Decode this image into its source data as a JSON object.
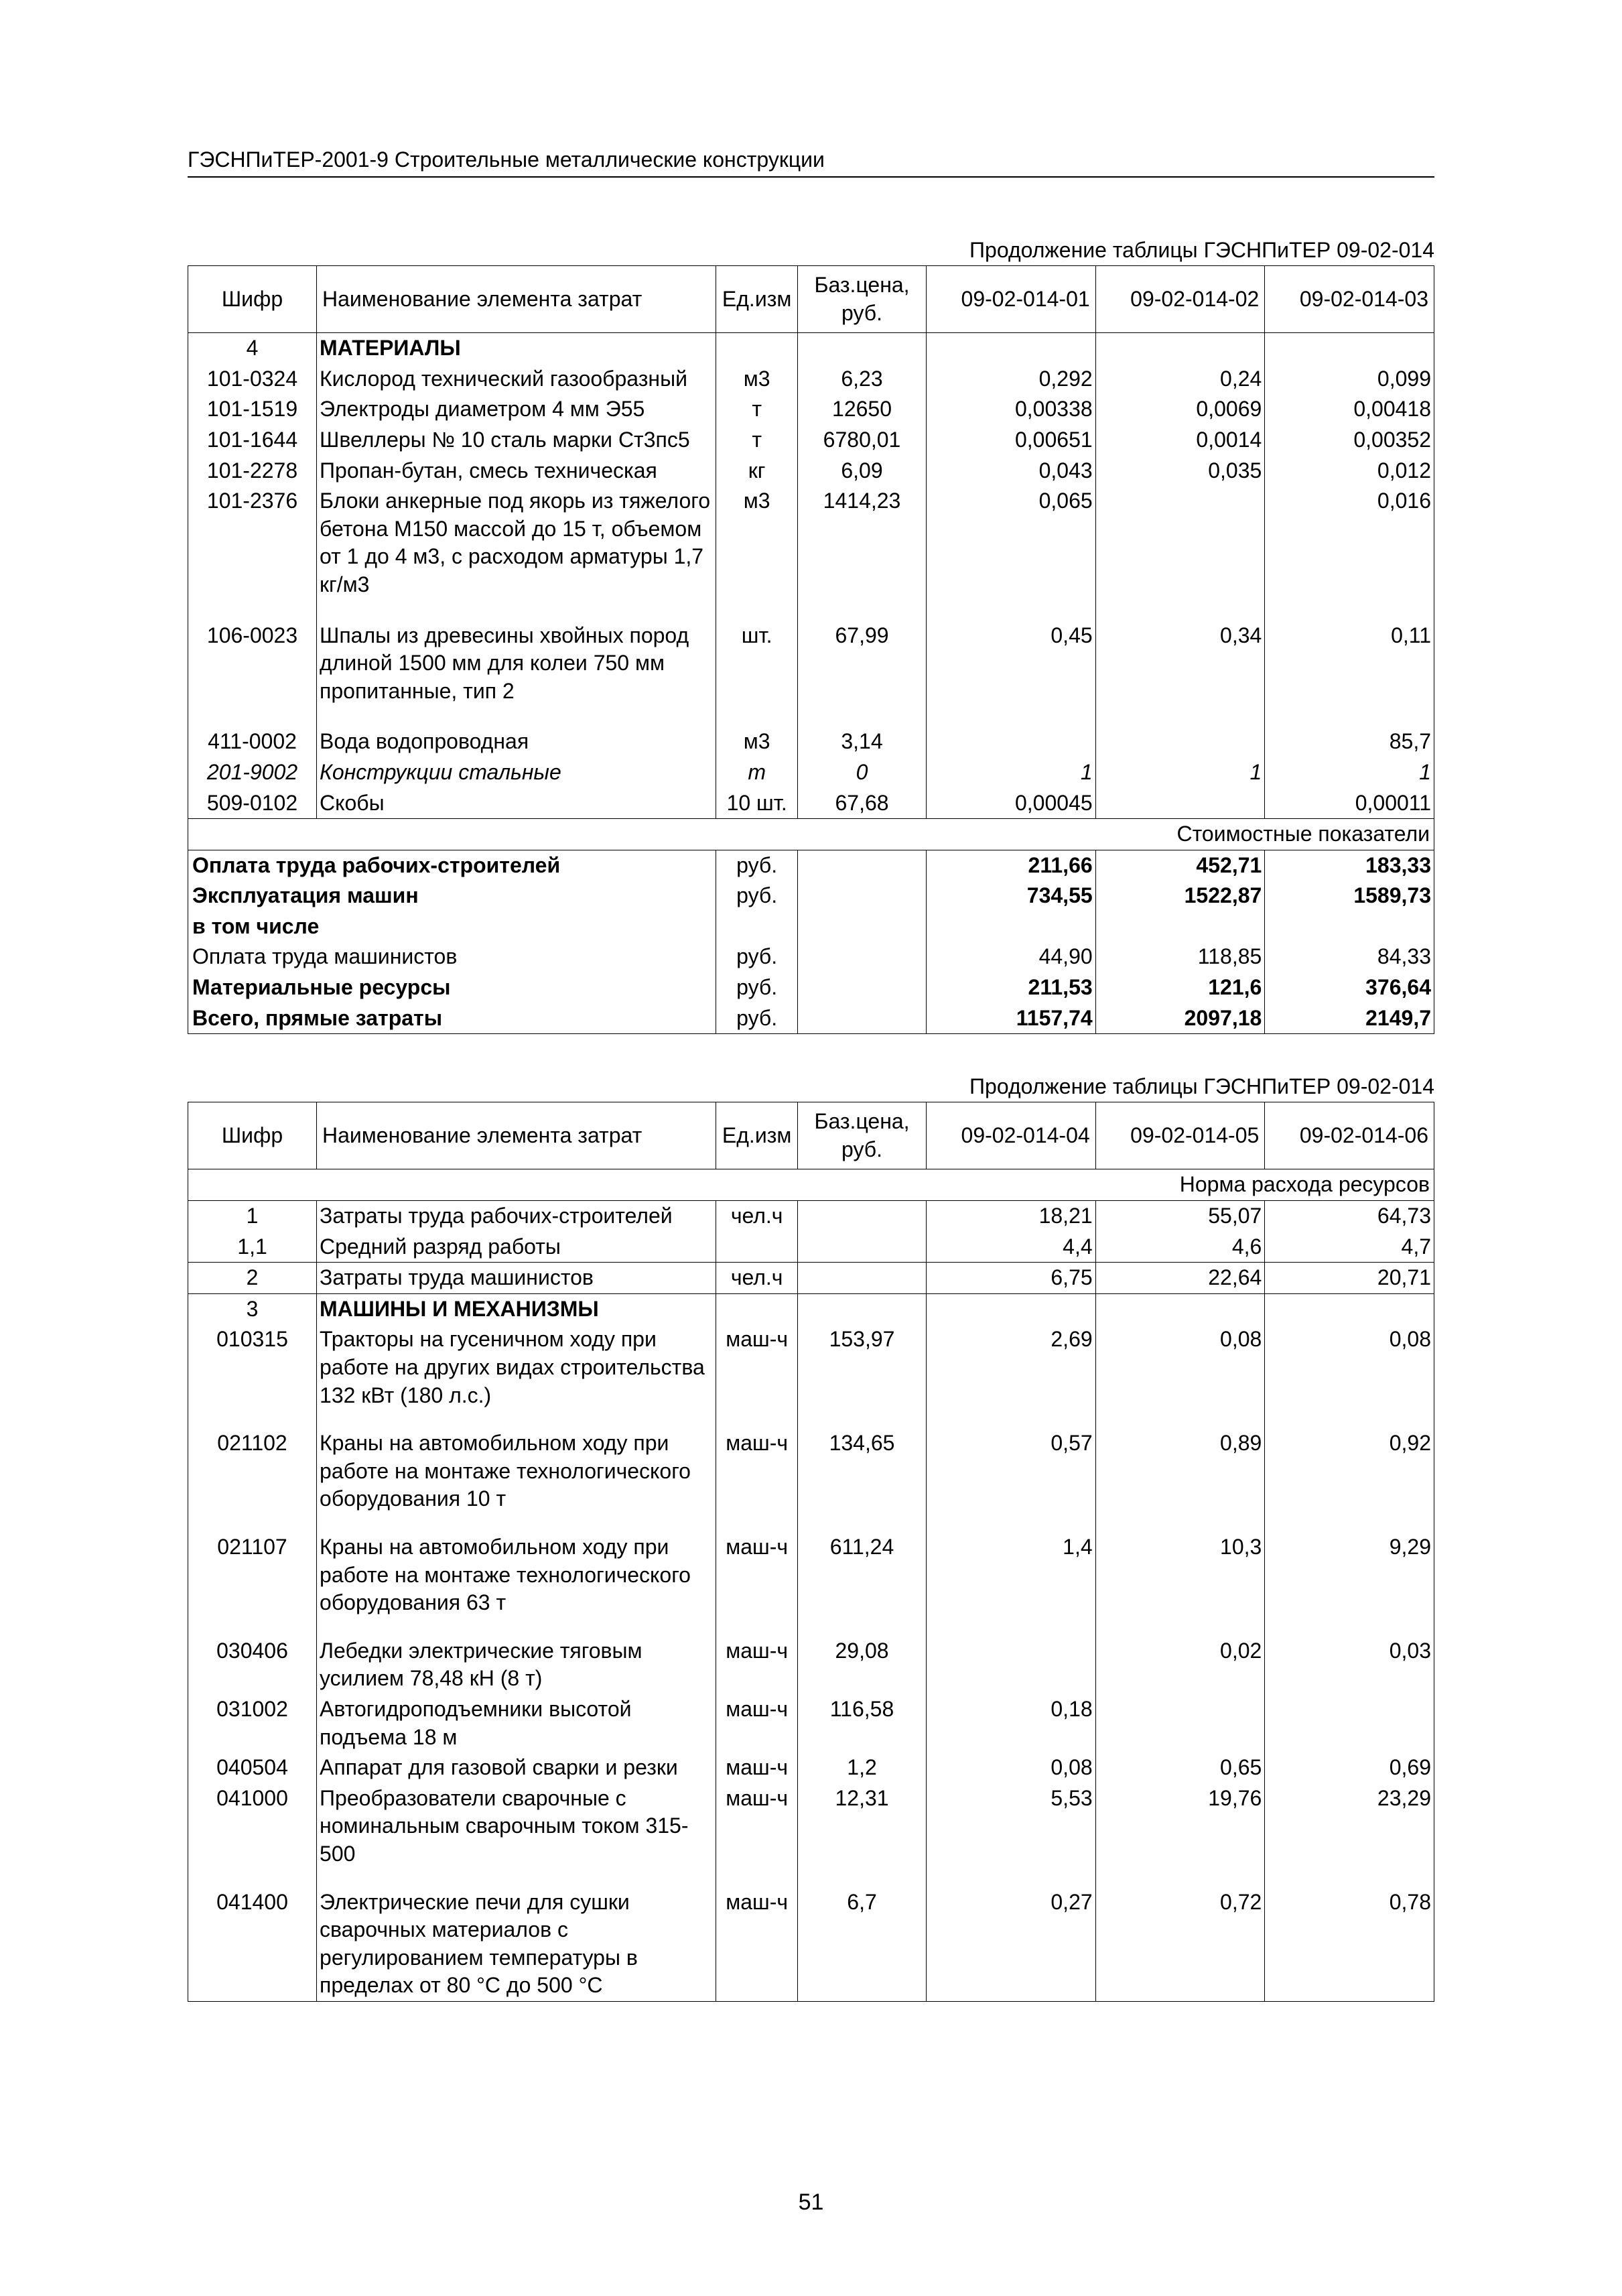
{
  "doc_header": "ГЭСНПиТЕР-2001-9 Строительные металлические конструкции",
  "page_number": "51",
  "continuation_label": "Продолжение таблицы ГЭСНПиТЕР 09-02-014",
  "headers": {
    "code": "Шифр",
    "name": "Наименование элемента затрат",
    "unit": "Ед.изм",
    "base_price": "Баз.цена, руб."
  },
  "table1": {
    "cols": [
      "09-02-014-01",
      "09-02-014-02",
      "09-02-014-03"
    ],
    "section_code": "4",
    "section_title": "МАТЕРИАЛЫ",
    "rows": [
      {
        "code": "101-0324",
        "name": "Кислород технический газообразный",
        "unit": "м3",
        "price": "6,23",
        "v": [
          "0,292",
          "0,24",
          "0,099"
        ]
      },
      {
        "code": "101-1519",
        "name": "Электроды диаметром 4 мм Э55",
        "unit": "т",
        "price": "12650",
        "v": [
          "0,00338",
          "0,0069",
          "0,00418"
        ]
      },
      {
        "code": "101-1644",
        "name": "Швеллеры № 10 сталь марки Ст3пс5",
        "unit": "т",
        "price": "6780,01",
        "v": [
          "0,00651",
          "0,0014",
          "0,00352"
        ]
      },
      {
        "code": "101-2278",
        "name": "Пропан-бутан, смесь техническая",
        "unit": "кг",
        "price": "6,09",
        "v": [
          "0,043",
          "0,035",
          "0,012"
        ]
      },
      {
        "code": "101-2376",
        "name": "Блоки анкерные под якорь из тяжелого бетона М150 массой до 15 т, объемом от 1 до 4 м3, с расходом арматуры 1,7 кг/м3",
        "unit": "м3",
        "price": "1414,23",
        "v": [
          "0,065",
          "",
          "0,016"
        ]
      },
      {
        "code": "106-0023",
        "name": "Шпалы из древесины хвойных пород длиной 1500 мм для колеи 750 мм пропитанные, тип 2",
        "unit": "шт.",
        "price": "67,99",
        "v": [
          "0,45",
          "0,34",
          "0,11"
        ]
      },
      {
        "code": "411-0002",
        "name": "Вода водопроводная",
        "unit": "м3",
        "price": "3,14",
        "v": [
          "",
          "",
          "85,7"
        ]
      },
      {
        "code": "201-9002",
        "name": "Конструкции стальные",
        "unit": "т",
        "price": "0",
        "v": [
          "1",
          "1",
          "1"
        ],
        "italic": true
      },
      {
        "code": "509-0102",
        "name": "Скобы",
        "unit": "10 шт.",
        "price": "67,68",
        "v": [
          "0,00045",
          "",
          "0,00011"
        ]
      }
    ],
    "cost_indicators_label": "Стоимостные показатели",
    "summary": [
      {
        "name": "Оплата труда рабочих-строителей",
        "unit": "руб.",
        "v": [
          "211,66",
          "452,71",
          "183,33"
        ],
        "bold": true
      },
      {
        "name": "Эксплуатация машин",
        "unit": "руб.",
        "v": [
          "734,55",
          "1522,87",
          "1589,73"
        ],
        "bold": true
      },
      {
        "name": "в том числе",
        "unit": "",
        "v": [
          "",
          "",
          ""
        ],
        "bold": true
      },
      {
        "name": "Оплата труда машинистов",
        "unit": "руб.",
        "v": [
          "44,90",
          "118,85",
          "84,33"
        ],
        "bold": false
      },
      {
        "name": "Материальные ресурсы",
        "unit": "руб.",
        "v": [
          "211,53",
          "121,6",
          "376,64"
        ],
        "bold": true
      },
      {
        "name": "Всего, прямые затраты",
        "unit": "руб.",
        "v": [
          "1157,74",
          "2097,18",
          "2149,7"
        ],
        "bold": true
      }
    ]
  },
  "table2": {
    "cols": [
      "09-02-014-04",
      "09-02-014-05",
      "09-02-014-06"
    ],
    "norm_label": "Норма расхода ресурсов",
    "rows_pre": [
      {
        "code": "1",
        "name": "Затраты труда рабочих-строителей",
        "unit": "чел.ч",
        "price": "",
        "v": [
          "18,21",
          "55,07",
          "64,73"
        ],
        "tb": true
      },
      {
        "code": "1,1",
        "name": "Средний разряд работы",
        "unit": "",
        "price": "",
        "v": [
          "4,4",
          "4,6",
          "4,7"
        ],
        "bb": true
      },
      {
        "code": "2",
        "name": "Затраты труда машинистов",
        "unit": "чел.ч",
        "price": "",
        "v": [
          "6,75",
          "22,64",
          "20,71"
        ],
        "tb": true,
        "bb": true
      }
    ],
    "section_code": "3",
    "section_title": "МАШИНЫ И МЕХАНИЗМЫ",
    "rows": [
      {
        "code": "010315",
        "name": "Тракторы на гусеничном ходу при работе на других видах строительства 132 кВт (180 л.с.)",
        "unit": "маш-ч",
        "price": "153,97",
        "v": [
          "2,69",
          "0,08",
          "0,08"
        ]
      },
      {
        "code": "021102",
        "name": "Краны на автомобильном ходу при работе на монтаже технологического оборудования 10 т",
        "unit": "маш-ч",
        "price": "134,65",
        "v": [
          "0,57",
          "0,89",
          "0,92"
        ]
      },
      {
        "code": "021107",
        "name": "Краны на автомобильном ходу при работе на монтаже технологического оборудования 63 т",
        "unit": "маш-ч",
        "price": "611,24",
        "v": [
          "1,4",
          "10,3",
          "9,29"
        ]
      },
      {
        "code": "030406",
        "name": "Лебедки электрические тяговым усилием 78,48 кН (8 т)",
        "unit": "маш-ч",
        "price": "29,08",
        "v": [
          "",
          "0,02",
          "0,03"
        ]
      },
      {
        "code": "031002",
        "name": "Автогидроподъемники высотой подъема 18 м",
        "unit": "маш-ч",
        "price": "116,58",
        "v": [
          "0,18",
          "",
          ""
        ]
      },
      {
        "code": "040504",
        "name": "Аппарат для газовой сварки и резки",
        "unit": "маш-ч",
        "price": "1,2",
        "v": [
          "0,08",
          "0,65",
          "0,69"
        ]
      },
      {
        "code": "041000",
        "name": "Преобразователи сварочные с номинальным сварочным током 315-500",
        "unit": "маш-ч",
        "price": "12,31",
        "v": [
          "5,53",
          "19,76",
          "23,29"
        ]
      },
      {
        "code": "041400",
        "name": "Электрические печи для сушки сварочных материалов с регулированием температуры в пределах от 80 °С до 500 °С",
        "unit": "маш-ч",
        "price": "6,7",
        "v": [
          "0,27",
          "0,72",
          "0,78"
        ]
      }
    ]
  }
}
